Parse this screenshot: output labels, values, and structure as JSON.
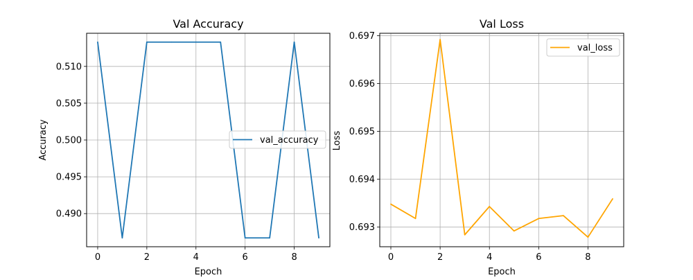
{
  "chart_data": [
    {
      "type": "line",
      "title": "Val Accuracy",
      "xlabel": "Epoch",
      "ylabel": "Accuracy",
      "x": [
        0,
        1,
        2,
        3,
        4,
        5,
        6,
        7,
        8,
        9
      ],
      "xticks": [
        0,
        2,
        4,
        6,
        8
      ],
      "xtick_labels": [
        "0",
        "2",
        "4",
        "6",
        "8"
      ],
      "xlim": [
        -0.45,
        9.45
      ],
      "yticks": [
        0.49,
        0.495,
        0.5,
        0.505,
        0.51
      ],
      "ytick_labels": [
        "0.490",
        "0.495",
        "0.500",
        "0.505",
        "0.510"
      ],
      "ylim": [
        0.4855,
        0.5145
      ],
      "grid": true,
      "legend_position": "center-right",
      "series": [
        {
          "name": "val_accuracy",
          "color": "#1f77b4",
          "values": [
            0.5133,
            0.4867,
            0.5133,
            0.5133,
            0.5133,
            0.5133,
            0.4867,
            0.4867,
            0.5133,
            0.4867
          ]
        }
      ]
    },
    {
      "type": "line",
      "title": "Val Loss",
      "xlabel": "Epoch",
      "ylabel": "Loss",
      "x": [
        0,
        1,
        2,
        3,
        4,
        5,
        6,
        7,
        8,
        9
      ],
      "xticks": [
        0,
        2,
        4,
        6,
        8
      ],
      "xtick_labels": [
        "0",
        "2",
        "4",
        "6",
        "8"
      ],
      "xlim": [
        -0.45,
        9.45
      ],
      "yticks": [
        0.693,
        0.694,
        0.695,
        0.696,
        0.697
      ],
      "ytick_labels": [
        "0.693",
        "0.694",
        "0.695",
        "0.696",
        "0.697"
      ],
      "ylim": [
        0.69259,
        0.69705
      ],
      "grid": true,
      "legend_position": "top-right",
      "series": [
        {
          "name": "val_loss",
          "color": "#ffa500",
          "values": [
            0.69348,
            0.69318,
            0.69692,
            0.69284,
            0.69343,
            0.69292,
            0.69318,
            0.69324,
            0.69279,
            0.69359
          ]
        }
      ]
    }
  ]
}
